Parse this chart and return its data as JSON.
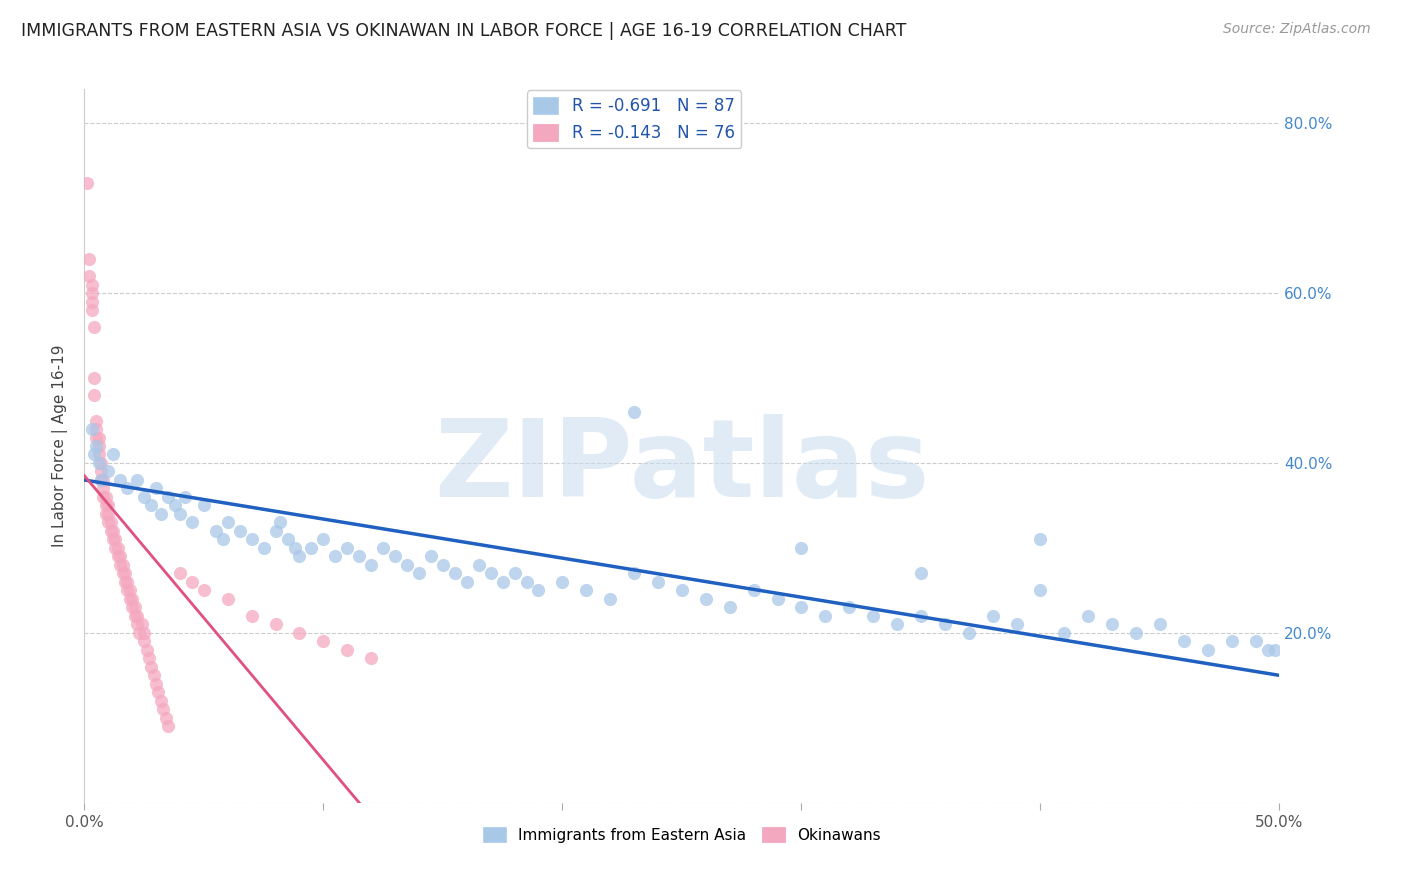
{
  "title": "IMMIGRANTS FROM EASTERN ASIA VS OKINAWAN IN LABOR FORCE | AGE 16-19 CORRELATION CHART",
  "source": "Source: ZipAtlas.com",
  "ylabel": "In Labor Force | Age 16-19",
  "xlim": [
    0.0,
    0.5
  ],
  "ylim": [
    0.0,
    0.84
  ],
  "yticks": [
    0.0,
    0.2,
    0.4,
    0.6,
    0.8
  ],
  "right_ytick_labels": [
    "",
    "20.0%",
    "40.0%",
    "60.0%",
    "80.0%"
  ],
  "xticks": [
    0.0,
    0.1,
    0.2,
    0.3,
    0.4,
    0.5
  ],
  "xtick_labels": [
    "0.0%",
    "",
    "",
    "",
    "",
    "50.0%"
  ],
  "blue_R": -0.691,
  "blue_N": 87,
  "pink_R": -0.143,
  "pink_N": 76,
  "blue_scatter_color": "#a8c8e8",
  "pink_scatter_color": "#f4a8c0",
  "blue_line_color": "#2060c0",
  "pink_solid_line_color": "#e05080",
  "pink_dash_line_color": "#f0a8c0",
  "legend_label_blue": "R = -0.691   N = 87",
  "legend_label_pink": "R = -0.143   N = 76",
  "watermark": "ZIPatlas",
  "background_color": "#ffffff",
  "blue_scatter_x": [
    0.003,
    0.004,
    0.005,
    0.006,
    0.007,
    0.01,
    0.012,
    0.015,
    0.018,
    0.022,
    0.025,
    0.028,
    0.03,
    0.032,
    0.035,
    0.038,
    0.04,
    0.042,
    0.045,
    0.05,
    0.055,
    0.058,
    0.06,
    0.065,
    0.07,
    0.075,
    0.08,
    0.082,
    0.085,
    0.088,
    0.09,
    0.095,
    0.1,
    0.105,
    0.11,
    0.115,
    0.12,
    0.125,
    0.13,
    0.135,
    0.14,
    0.145,
    0.15,
    0.155,
    0.16,
    0.165,
    0.17,
    0.175,
    0.18,
    0.185,
    0.19,
    0.2,
    0.21,
    0.22,
    0.23,
    0.24,
    0.25,
    0.26,
    0.27,
    0.28,
    0.29,
    0.3,
    0.31,
    0.32,
    0.33,
    0.34,
    0.35,
    0.36,
    0.37,
    0.38,
    0.39,
    0.4,
    0.41,
    0.42,
    0.43,
    0.44,
    0.45,
    0.46,
    0.47,
    0.48,
    0.49,
    0.495,
    0.498,
    0.23,
    0.3,
    0.35,
    0.4
  ],
  "blue_scatter_y": [
    0.44,
    0.41,
    0.42,
    0.4,
    0.38,
    0.39,
    0.41,
    0.38,
    0.37,
    0.38,
    0.36,
    0.35,
    0.37,
    0.34,
    0.36,
    0.35,
    0.34,
    0.36,
    0.33,
    0.35,
    0.32,
    0.31,
    0.33,
    0.32,
    0.31,
    0.3,
    0.32,
    0.33,
    0.31,
    0.3,
    0.29,
    0.3,
    0.31,
    0.29,
    0.3,
    0.29,
    0.28,
    0.3,
    0.29,
    0.28,
    0.27,
    0.29,
    0.28,
    0.27,
    0.26,
    0.28,
    0.27,
    0.26,
    0.27,
    0.26,
    0.25,
    0.26,
    0.25,
    0.24,
    0.27,
    0.26,
    0.25,
    0.24,
    0.23,
    0.25,
    0.24,
    0.23,
    0.22,
    0.23,
    0.22,
    0.21,
    0.22,
    0.21,
    0.2,
    0.22,
    0.21,
    0.25,
    0.2,
    0.22,
    0.21,
    0.2,
    0.21,
    0.19,
    0.18,
    0.19,
    0.19,
    0.18,
    0.18,
    0.46,
    0.3,
    0.27,
    0.31
  ],
  "pink_scatter_x": [
    0.001,
    0.002,
    0.002,
    0.003,
    0.003,
    0.003,
    0.003,
    0.004,
    0.004,
    0.004,
    0.005,
    0.005,
    0.005,
    0.006,
    0.006,
    0.006,
    0.007,
    0.007,
    0.007,
    0.008,
    0.008,
    0.008,
    0.009,
    0.009,
    0.009,
    0.01,
    0.01,
    0.01,
    0.011,
    0.011,
    0.012,
    0.012,
    0.013,
    0.013,
    0.014,
    0.014,
    0.015,
    0.015,
    0.016,
    0.016,
    0.017,
    0.017,
    0.018,
    0.018,
    0.019,
    0.019,
    0.02,
    0.02,
    0.021,
    0.021,
    0.022,
    0.022,
    0.023,
    0.024,
    0.025,
    0.025,
    0.026,
    0.027,
    0.028,
    0.029,
    0.03,
    0.031,
    0.032,
    0.033,
    0.034,
    0.035,
    0.04,
    0.045,
    0.05,
    0.06,
    0.07,
    0.08,
    0.09,
    0.1,
    0.11,
    0.12
  ],
  "pink_scatter_y": [
    0.73,
    0.64,
    0.62,
    0.6,
    0.61,
    0.59,
    0.58,
    0.56,
    0.48,
    0.5,
    0.43,
    0.45,
    0.44,
    0.43,
    0.41,
    0.42,
    0.4,
    0.38,
    0.39,
    0.37,
    0.36,
    0.38,
    0.35,
    0.34,
    0.36,
    0.33,
    0.35,
    0.34,
    0.32,
    0.33,
    0.31,
    0.32,
    0.3,
    0.31,
    0.29,
    0.3,
    0.28,
    0.29,
    0.27,
    0.28,
    0.26,
    0.27,
    0.25,
    0.26,
    0.24,
    0.25,
    0.23,
    0.24,
    0.22,
    0.23,
    0.21,
    0.22,
    0.2,
    0.21,
    0.19,
    0.2,
    0.18,
    0.17,
    0.16,
    0.15,
    0.14,
    0.13,
    0.12,
    0.11,
    0.1,
    0.09,
    0.27,
    0.26,
    0.25,
    0.24,
    0.22,
    0.21,
    0.2,
    0.19,
    0.18,
    0.17
  ]
}
